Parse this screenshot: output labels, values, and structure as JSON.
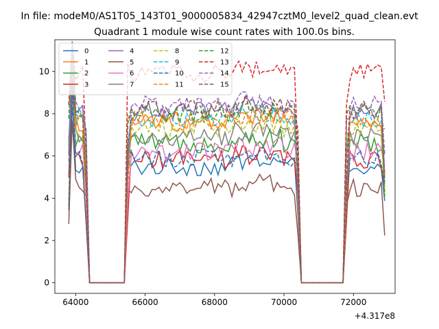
{
  "figure": {
    "suptitle": "In file: modeM0/AS1T05_143T01_9000005834_42947cztM0_level2_quad_clean.evt"
  },
  "chart_data": {
    "type": "line",
    "title": "Quadrant 1 module wise count rates with 100.0s bins.",
    "xlabel": "",
    "ylabel": "",
    "x_offset_label": "+4.317e8",
    "xlim": [
      63400,
      73200
    ],
    "ylim": [
      -0.5,
      11.5
    ],
    "x_ticks": [
      64000,
      66000,
      68000,
      70000,
      72000
    ],
    "x_tick_labels": [
      "64000",
      "66000",
      "68000",
      "70000",
      "72000"
    ],
    "y_ticks": [
      0,
      2,
      4,
      6,
      8,
      10
    ],
    "y_tick_labels": [
      "0",
      "2",
      "4",
      "6",
      "8",
      "10"
    ],
    "grid": false,
    "legend_placement": "top-left",
    "legend_columns": 4,
    "segments": [
      {
        "start": 63800,
        "end": 64300
      },
      {
        "start": 65500,
        "end": 70400
      },
      {
        "start": 71800,
        "end": 72900
      }
    ],
    "series": [
      {
        "name": "0",
        "color": "#1f77b4",
        "dash": "solid",
        "level": 5.5
      },
      {
        "name": "1",
        "color": "#ff7f0e",
        "dash": "solid",
        "level": 7.6
      },
      {
        "name": "2",
        "color": "#2ca02c",
        "dash": "solid",
        "level": 6.6
      },
      {
        "name": "3",
        "color": "#d62728",
        "dash": "solid",
        "level": 5.8
      },
      {
        "name": "4",
        "color": "#9467bd",
        "dash": "solid",
        "level": 8.1
      },
      {
        "name": "5",
        "color": "#8c564b",
        "dash": "solid",
        "level": 4.5
      },
      {
        "name": "6",
        "color": "#e377c2",
        "dash": "solid",
        "level": 6.2
      },
      {
        "name": "7",
        "color": "#7f7f7f",
        "dash": "solid",
        "level": 6.9
      },
      {
        "name": "8",
        "color": "#bcbd22",
        "dash": "dashed",
        "level": 7.3
      },
      {
        "name": "9",
        "color": "#17becf",
        "dash": "dashed",
        "level": 7.8
      },
      {
        "name": "10",
        "color": "#1f77b4",
        "dash": "dashed",
        "level": 5.9
      },
      {
        "name": "11",
        "color": "#ff7f0e",
        "dash": "dashed",
        "level": 7.7
      },
      {
        "name": "12",
        "color": "#2ca02c",
        "dash": "dashed",
        "level": 8.0
      },
      {
        "name": "13",
        "color": "#d62728",
        "dash": "dashed",
        "level": 9.9
      },
      {
        "name": "14",
        "color": "#9467bd",
        "dash": "dashed",
        "level": 8.4
      },
      {
        "name": "15",
        "color": "#8c564b",
        "dash": "dashed",
        "level": 8.2
      }
    ]
  }
}
